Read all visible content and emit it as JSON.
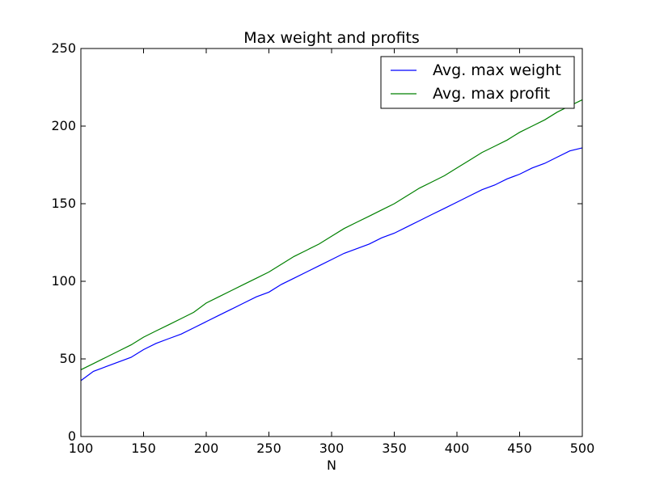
{
  "chart_data": {
    "type": "line",
    "title": "Max weight and profits",
    "xlabel": "N",
    "ylabel": "",
    "xlim": [
      100,
      500
    ],
    "ylim": [
      0,
      250
    ],
    "xticks": [
      100,
      150,
      200,
      250,
      300,
      350,
      400,
      450,
      500
    ],
    "yticks": [
      0,
      50,
      100,
      150,
      200,
      250
    ],
    "grid": false,
    "legend_position": "top-right",
    "series": [
      {
        "name": "Avg. max weight",
        "color": "#0000ff",
        "x": [
          100,
          110,
          120,
          130,
          140,
          150,
          160,
          170,
          180,
          190,
          200,
          210,
          220,
          230,
          240,
          250,
          260,
          270,
          280,
          290,
          300,
          310,
          320,
          330,
          340,
          350,
          360,
          370,
          380,
          390,
          400,
          410,
          420,
          430,
          440,
          450,
          460,
          470,
          480,
          490,
          500
        ],
        "y": [
          36,
          42,
          45,
          48,
          51,
          56,
          60,
          63,
          66,
          70,
          74,
          78,
          82,
          86,
          90,
          93,
          98,
          102,
          106,
          110,
          114,
          118,
          121,
          124,
          128,
          131,
          135,
          139,
          143,
          147,
          151,
          155,
          159,
          162,
          166,
          169,
          173,
          176,
          180,
          184,
          186
        ]
      },
      {
        "name": "Avg. max profit",
        "color": "#008000",
        "x": [
          100,
          110,
          120,
          130,
          140,
          150,
          160,
          170,
          180,
          190,
          200,
          210,
          220,
          230,
          240,
          250,
          260,
          270,
          280,
          290,
          300,
          310,
          320,
          330,
          340,
          350,
          360,
          370,
          380,
          390,
          400,
          410,
          420,
          430,
          440,
          450,
          460,
          470,
          480,
          490,
          500
        ],
        "y": [
          43,
          47,
          51,
          55,
          59,
          64,
          68,
          72,
          76,
          80,
          86,
          90,
          94,
          98,
          102,
          106,
          111,
          116,
          120,
          124,
          129,
          134,
          138,
          142,
          146,
          150,
          155,
          160,
          164,
          168,
          173,
          178,
          183,
          187,
          191,
          196,
          200,
          204,
          209,
          213,
          217
        ]
      }
    ]
  }
}
